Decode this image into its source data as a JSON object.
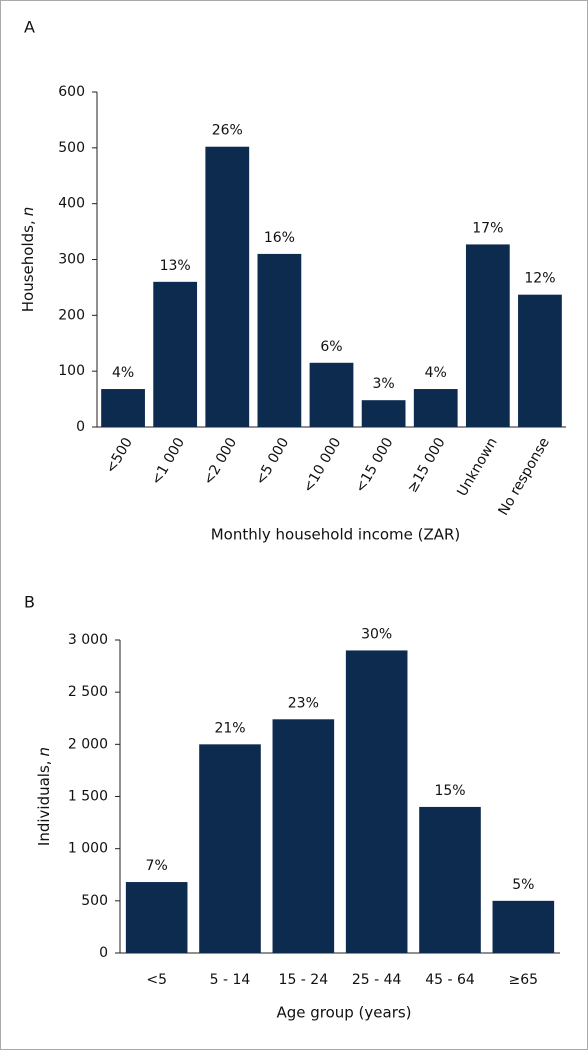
{
  "chart_data": [
    {
      "type": "bar",
      "panel": "A",
      "ylabel": "Households,",
      "ylabel_var": "n",
      "xlabel": "Monthly household income (ZAR)",
      "categories": [
        "<500",
        "<1 000",
        "<2 000",
        "<5 000",
        "<10 000",
        "<15 000",
        "≥15 000",
        "Unknown",
        "No response"
      ],
      "values": [
        68,
        260,
        502,
        310,
        115,
        48,
        68,
        327,
        237
      ],
      "percent_labels": [
        "4%",
        "13%",
        "26%",
        "16%",
        "6%",
        "3%",
        "4%",
        "17%",
        "12%"
      ],
      "color": "#0d2a4f",
      "ylim": [
        0,
        600
      ],
      "yticks": [
        0,
        100,
        200,
        300,
        400,
        500,
        600
      ],
      "rotate_xlabels": true
    },
    {
      "type": "bar",
      "panel": "B",
      "ylabel": "Individuals,",
      "ylabel_var": "n",
      "xlabel": "Age group (years)",
      "categories": [
        "<5",
        "5 - 14",
        "15 - 24",
        "25 - 44",
        "45 - 64",
        "≥65"
      ],
      "values": [
        680,
        2000,
        2240,
        2900,
        1400,
        500
      ],
      "percent_labels": [
        "7%",
        "21%",
        "23%",
        "30%",
        "15%",
        "5%"
      ],
      "color": "#0d2a4f",
      "ylim": [
        0,
        3000
      ],
      "yticks": [
        0,
        500,
        {
          "value": 1000,
          "label": "1 000"
        },
        {
          "value": 1500,
          "label": "1 500"
        },
        {
          "value": 2000,
          "label": "2 000"
        },
        {
          "value": 2500,
          "label": "2 500"
        },
        {
          "value": 3000,
          "label": "3 000"
        }
      ],
      "rotate_xlabels": false
    }
  ]
}
